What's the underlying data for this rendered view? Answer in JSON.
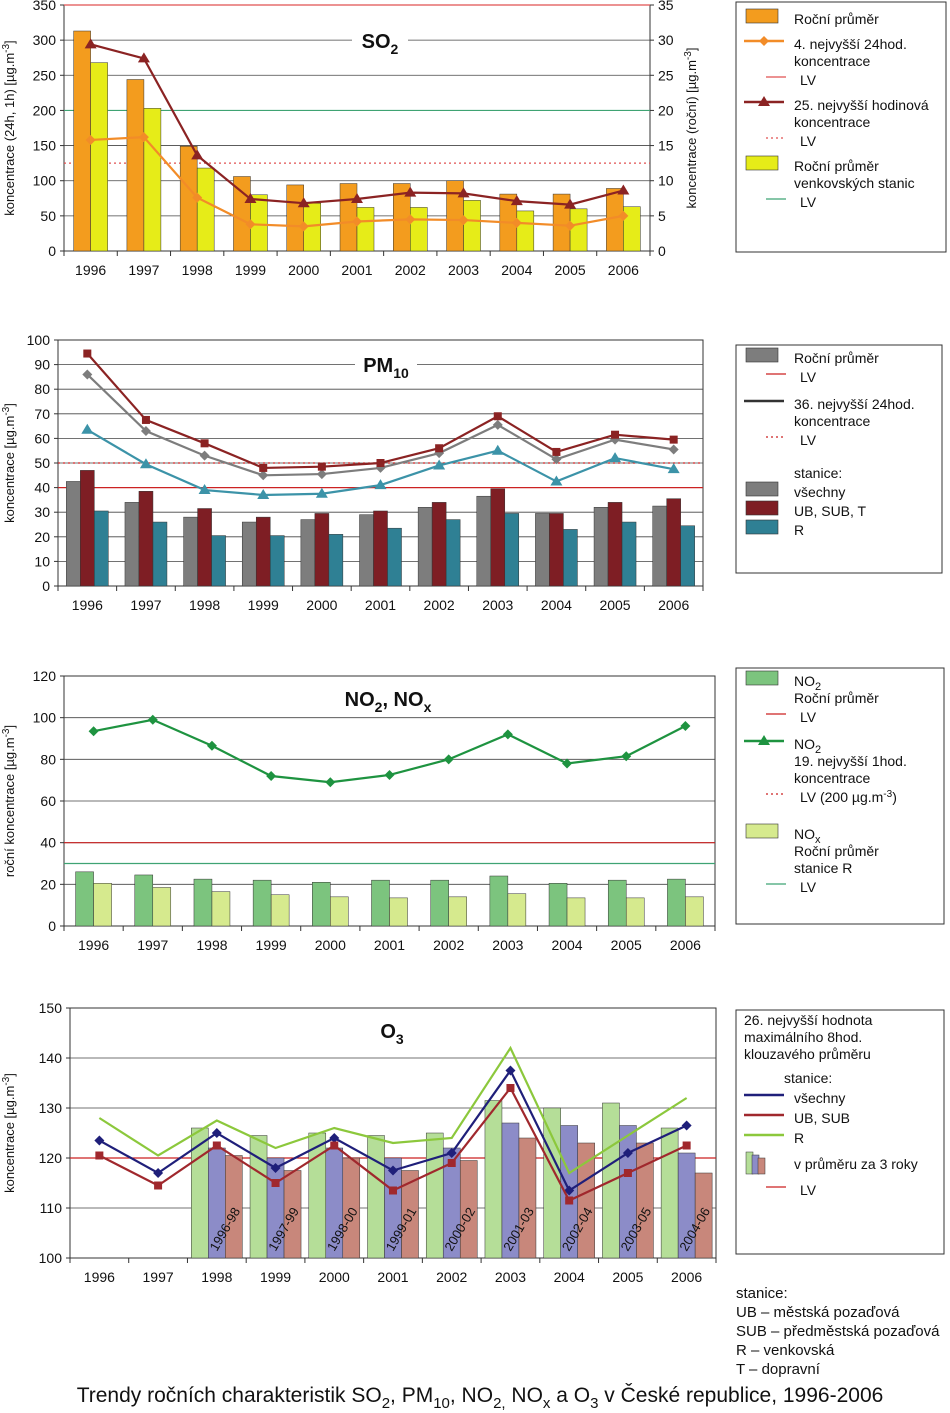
{
  "colors": {
    "so2_bar_roc": "#F39C1E",
    "so2_bar_venk": "#E6EC18",
    "so2_line_24h": "#F28C28",
    "so2_line_hod": "#8B2323",
    "so2_lv_hod": "#E05050",
    "so2_lv_venk": "#3FA373",
    "pm_bar_all": "#7D7D7D",
    "pm_bar_ub": "#7E1E24",
    "pm_bar_r": "#2F8094",
    "pm_line_all": "#7D7D7D",
    "pm_line_ub": "#8B2323",
    "pm_line_r": "#3C93A8",
    "no2_bar": "#7CC47E",
    "nox_bar": "#D6EA8E",
    "no2_line": "#1E9340",
    "o3_line_all": "#1F1F7A",
    "o3_line_ub": "#A0282D",
    "o3_line_r": "#8CC83C",
    "o3_bar_r": "#B5DE98",
    "o3_bar_all": "#8C8CC8",
    "o3_bar_ub": "#C8877B",
    "lv_red": "#CC2222",
    "lv_green": "#3FA373"
  },
  "chart_data": [
    {
      "id": "so2",
      "type": "bar",
      "title_base": "SO",
      "title_sub": "2",
      "ylabel_left": "koncentrace (24h, 1h) [µg.m-3]",
      "ylabel_right": "koncentrace (roční) [µg.m-3]",
      "categories": [
        "1996",
        "1997",
        "1998",
        "1999",
        "2000",
        "2001",
        "2002",
        "2003",
        "2004",
        "2005",
        "2006"
      ],
      "yticks_left": [
        "0",
        "50",
        "100",
        "150",
        "200",
        "250",
        "300",
        "350"
      ],
      "yticks_right": [
        "0",
        "5",
        "10",
        "15",
        "20",
        "25",
        "30",
        "35"
      ],
      "ylim_left": [
        0,
        350
      ],
      "ylim_right": [
        0,
        35
      ],
      "series": [
        {
          "name": "Roční průměr",
          "kind": "bar",
          "axis": "right",
          "values": [
            31.3,
            24.4,
            14.9,
            10.6,
            9.4,
            9.6,
            9.6,
            10.0,
            8.1,
            8.1,
            8.9
          ]
        },
        {
          "name": "Roční průměr venkovských stanic",
          "kind": "bar",
          "axis": "right",
          "values": [
            26.8,
            20.3,
            11.8,
            8.0,
            6.8,
            6.2,
            6.2,
            7.2,
            5.7,
            6.0,
            6.3
          ]
        },
        {
          "name": "4. nejvyšší 24hod. koncentrace",
          "kind": "line",
          "marker": "diamond",
          "axis": "left",
          "values": [
            158,
            162,
            76,
            38,
            35,
            42,
            45,
            44,
            40,
            36,
            50
          ]
        },
        {
          "name": "25. nejvyšší hodinová koncentrace",
          "kind": "line",
          "marker": "triangle",
          "axis": "left",
          "values": [
            294,
            274,
            136,
            74,
            68,
            74,
            83,
            82,
            71,
            66,
            86
          ]
        }
      ],
      "reference_lines": [
        {
          "label": "LV",
          "axis": "left",
          "value": 350,
          "style": "solid",
          "color": "#E05050"
        },
        {
          "label": "LV",
          "axis": "left",
          "value": 125,
          "style": "dotted",
          "color": "#E05050"
        },
        {
          "label": "LV",
          "axis": "right",
          "value": 20,
          "style": "solid",
          "color": "#3FA373"
        }
      ],
      "legend": {
        "position": "right",
        "entries": [
          {
            "kind": "bar",
            "color": "#F39C1E",
            "lines": [
              "Roční průměr"
            ]
          },
          {
            "kind": "diamond-line",
            "color": "#F28C28",
            "lines": [
              "4. nejvyšší 24hod.",
              "koncentrace"
            ]
          },
          {
            "kind": "solid-lv",
            "color": "#E05050",
            "lines": [
              "LV"
            ]
          },
          {
            "kind": "triangle-line",
            "color": "#8B2323",
            "lines": [
              "25. nejvyšší hodinová",
              "koncentrace"
            ]
          },
          {
            "kind": "dotted-lv",
            "color": "#E05050",
            "lines": [
              "LV"
            ]
          },
          {
            "kind": "bar",
            "color": "#E6EC18",
            "lines": [
              "Roční průměr",
              "venkovských stanic"
            ]
          },
          {
            "kind": "solid-lv",
            "color": "#3FA373",
            "lines": [
              "LV"
            ]
          }
        ]
      }
    },
    {
      "id": "pm10",
      "type": "bar",
      "title_base": "PM",
      "title_sub": "10",
      "ylabel_left": "koncentrace [µg.m-3]",
      "categories": [
        "1996",
        "1997",
        "1998",
        "1999",
        "2000",
        "2001",
        "2002",
        "2003",
        "2004",
        "2005",
        "2006"
      ],
      "yticks_left": [
        "0",
        "10",
        "20",
        "30",
        "40",
        "50",
        "60",
        "70",
        "80",
        "90",
        "100"
      ],
      "ylim_left": [
        0,
        100
      ],
      "series": [
        {
          "name": "všechny",
          "kind": "bar",
          "values": [
            42.5,
            34.0,
            28.0,
            26.0,
            27.0,
            29.0,
            32.0,
            36.5,
            29.5,
            32.0,
            32.5
          ]
        },
        {
          "name": "UB, SUB, T",
          "kind": "bar",
          "values": [
            47.0,
            38.5,
            31.5,
            28.0,
            29.5,
            30.5,
            34.0,
            39.5,
            29.5,
            34.0,
            35.5
          ]
        },
        {
          "name": "R",
          "kind": "bar",
          "values": [
            30.5,
            26.0,
            20.5,
            20.5,
            21.0,
            23.5,
            27.0,
            29.5,
            23.0,
            26.0,
            24.5
          ]
        },
        {
          "name": "všechny",
          "kind": "line",
          "marker": "diamond",
          "values": [
            86,
            63,
            53,
            45,
            45.5,
            48,
            54,
            65.5,
            51.5,
            59.5,
            55.5
          ]
        },
        {
          "name": "UB, SUB, T",
          "kind": "line",
          "marker": "square",
          "values": [
            94.5,
            67.5,
            58,
            48,
            48.5,
            50,
            56,
            69,
            54.5,
            61.5,
            59.5
          ]
        },
        {
          "name": "R",
          "kind": "line",
          "marker": "triangle",
          "values": [
            63.5,
            49.5,
            39,
            37,
            37.5,
            41,
            49,
            55,
            42.5,
            52,
            47.5
          ]
        }
      ],
      "reference_lines": [
        {
          "label": "LV",
          "value": 40,
          "style": "solid",
          "color": "#CC2222"
        },
        {
          "label": "LV",
          "value": 50,
          "style": "dotted",
          "color": "#CC2222"
        }
      ],
      "legend": {
        "position": "right",
        "entries": [
          {
            "kind": "bar",
            "color": "#7D7D7D",
            "lines": [
              "Roční průměr"
            ]
          },
          {
            "kind": "solid-lv",
            "color": "#CC2222",
            "lines": [
              "LV"
            ]
          },
          {
            "kind": "plain-line",
            "color": "#333333",
            "lines": [
              "36. nejvyšší 24hod.",
              "koncentrace"
            ]
          },
          {
            "kind": "dotted-lv",
            "color": "#CC2222",
            "lines": [
              "LV"
            ]
          },
          {
            "kind": "text",
            "color": "",
            "lines": [
              "stanice:"
            ]
          },
          {
            "kind": "bar",
            "color": "#7D7D7D",
            "lines": [
              "všechny"
            ]
          },
          {
            "kind": "bar",
            "color": "#7E1E24",
            "lines": [
              "UB, SUB, T"
            ]
          },
          {
            "kind": "bar",
            "color": "#2F8094",
            "lines": [
              "R"
            ]
          }
        ]
      }
    },
    {
      "id": "no2",
      "type": "bar",
      "title_base": "NO",
      "title_sub": "2",
      "title_mid": ", NO",
      "title_sub2": "x",
      "ylabel_left": "roční koncentrace [µg.m-3]",
      "categories": [
        "1996",
        "1997",
        "1998",
        "1999",
        "2000",
        "2001",
        "2002",
        "2003",
        "2004",
        "2005",
        "2006"
      ],
      "yticks_left": [
        "0",
        "20",
        "40",
        "60",
        "80",
        "100",
        "120"
      ],
      "ylim_left": [
        0,
        120
      ],
      "series": [
        {
          "name": "NO2 Roční průměr",
          "kind": "bar",
          "values": [
            26,
            24.5,
            22.5,
            22,
            21,
            22,
            22,
            24,
            20.5,
            22,
            22.5
          ]
        },
        {
          "name": "NOx Roční průměr stanice R",
          "kind": "bar",
          "values": [
            20.5,
            18.5,
            16.5,
            15,
            14,
            13.5,
            14,
            15.5,
            13.5,
            13.5,
            14
          ]
        },
        {
          "name": "NO2 19. nejvyšší 1hod. koncentrace",
          "kind": "line",
          "marker": "diamond",
          "values": [
            93.5,
            99,
            86.5,
            72,
            69,
            72.5,
            80,
            92,
            78,
            81.5,
            96
          ]
        }
      ],
      "reference_lines": [
        {
          "label": "LV",
          "value": 40,
          "style": "solid",
          "color": "#CC2222"
        },
        {
          "label": "LV",
          "value": 30,
          "style": "solid",
          "color": "#3FA373"
        }
      ],
      "legend": {
        "position": "right",
        "entries": [
          {
            "kind": "bar",
            "color": "#7CC47E",
            "lines": [
              "NO2",
              "Roční průměr"
            ]
          },
          {
            "kind": "solid-lv",
            "color": "#CC2222",
            "lines": [
              "LV"
            ]
          },
          {
            "kind": "triangle-line",
            "color": "#1E9340",
            "lines": [
              "NO2",
              "19. nejvyšší 1hod.",
              "koncentrace"
            ]
          },
          {
            "kind": "dotted-lv",
            "color": "#CC2222",
            "lines": [
              "LV (200 µg.m-3)"
            ]
          },
          {
            "kind": "bar",
            "color": "#D6EA8E",
            "lines": [
              "NOx",
              "Roční průměr",
              "stanice R"
            ]
          },
          {
            "kind": "solid-lv",
            "color": "#3FA373",
            "lines": [
              "LV"
            ]
          }
        ]
      }
    },
    {
      "id": "o3",
      "type": "bar",
      "title_base": "O",
      "title_sub": "3",
      "ylabel_left": "koncentrace [µg.m-3]",
      "categories": [
        "1996",
        "1997",
        "1998",
        "1999",
        "2000",
        "2001",
        "2002",
        "2003",
        "2004",
        "2005",
        "2006"
      ],
      "yticks_left": [
        "100",
        "110",
        "120",
        "130",
        "140",
        "150"
      ],
      "ylim_left": [
        100,
        150
      ],
      "bar_group_labels": [
        "",
        "",
        "1996-98",
        "1997-99",
        "1998-00",
        "1999-01",
        "2000-02",
        "2001-03",
        "2002-04",
        "2003-05",
        "2004-06"
      ],
      "series": [
        {
          "name": "R (3 roky)",
          "kind": "bar",
          "values": [
            null,
            null,
            126,
            124.5,
            125,
            124.5,
            125,
            131.5,
            130,
            131,
            126
          ]
        },
        {
          "name": "všechny (3 roky)",
          "kind": "bar",
          "values": [
            null,
            null,
            122,
            120,
            122,
            120,
            122,
            127,
            126.5,
            126.5,
            121
          ]
        },
        {
          "name": "UB, SUB (3 roky)",
          "kind": "bar",
          "values": [
            null,
            null,
            120.5,
            117.5,
            120,
            117.5,
            119.5,
            124,
            123,
            123,
            117
          ]
        },
        {
          "name": "všechny",
          "kind": "line",
          "marker": "diamond",
          "values": [
            123.5,
            117,
            125,
            118,
            124,
            117.5,
            121,
            137.5,
            113.5,
            121,
            126.5
          ]
        },
        {
          "name": "UB, SUB",
          "kind": "line",
          "marker": "square",
          "values": [
            120.5,
            114.5,
            122.5,
            115,
            122.5,
            113.5,
            119,
            134,
            111.5,
            117,
            122.5
          ]
        },
        {
          "name": "R",
          "kind": "line",
          "marker": "none",
          "values": [
            128,
            120.5,
            127.5,
            122,
            126,
            123,
            124,
            142,
            117,
            124.5,
            132
          ]
        }
      ],
      "reference_lines": [
        {
          "label": "LV",
          "value": 120,
          "style": "solid",
          "color": "#CC2222"
        }
      ],
      "legend": {
        "position": "right",
        "entries": [
          {
            "kind": "text",
            "color": "",
            "lines": [
              "26. nejvyšší hodnota",
              "maximálního 8hod.",
              "klouzavého průměru"
            ]
          },
          {
            "kind": "text",
            "color": "",
            "lines": [
              "stanice:"
            ]
          },
          {
            "kind": "plain-line",
            "color": "#1F1F7A",
            "lines": [
              "všechny"
            ]
          },
          {
            "kind": "plain-line",
            "color": "#A0282D",
            "lines": [
              "UB, SUB"
            ]
          },
          {
            "kind": "plain-line",
            "color": "#8CC83C",
            "lines": [
              "R"
            ]
          },
          {
            "kind": "mini-bars",
            "color": "",
            "lines": [
              "v průměru za 3 roky"
            ]
          },
          {
            "kind": "solid-lv",
            "color": "#CC2222",
            "lines": [
              "LV"
            ]
          }
        ]
      }
    }
  ],
  "footnote": {
    "lines": [
      "stanice:",
      "UB – městská pozaďová",
      "SUB – předměstská pozaďová",
      "R – venkovská",
      "T – dopravní"
    ]
  },
  "caption": {
    "parts": [
      {
        "t": "Trendy ročních charakteristik SO"
      },
      {
        "t": "2",
        "sub": true
      },
      {
        "t": ", PM"
      },
      {
        "t": "10",
        "sub": true
      },
      {
        "t": ", NO"
      },
      {
        "t": "2,",
        "sub": true
      },
      {
        "t": " NO"
      },
      {
        "t": "x",
        "sub": true
      },
      {
        "t": " a O"
      },
      {
        "t": "3",
        "sub": true
      },
      {
        "t": " v České republice, 1996-2006"
      }
    ]
  }
}
